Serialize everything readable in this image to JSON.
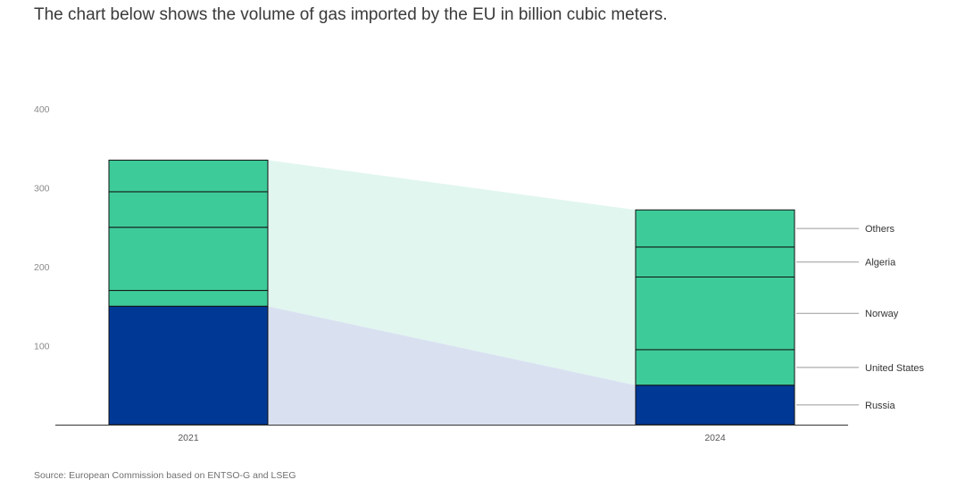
{
  "header": {
    "title": "The chart below shows the volume of gas imported by the EU in billion cubic meters."
  },
  "footer": {
    "source": "Source: European Commission based on ENTSO-G and LSEG"
  },
  "colors": {
    "russia": "#003896",
    "other_sources": "#3ecb9a",
    "segment_border": "#111111",
    "band_russia": "#d9e1f1",
    "band_other": "#e1f6ef",
    "axis": "#333333",
    "leader": "#9a9a9a"
  },
  "chart_data": {
    "type": "bar",
    "stacked": true,
    "categories": [
      "2021",
      "2024"
    ],
    "series": [
      {
        "name": "Russia",
        "values": [
          150,
          50
        ]
      },
      {
        "name": "United States",
        "values": [
          20,
          45
        ]
      },
      {
        "name": "Norway",
        "values": [
          80,
          92
        ]
      },
      {
        "name": "Algeria",
        "values": [
          45,
          38
        ]
      },
      {
        "name": "Others",
        "values": [
          40,
          47
        ]
      }
    ],
    "ylim": [
      0,
      400
    ],
    "yticks": [
      100,
      200,
      300,
      400
    ],
    "grid": false,
    "legend": "right, labels at segment midpoints of the 2024 bar",
    "connecting_bands": [
      {
        "series_from": "Russia",
        "series_to": "Russia"
      },
      {
        "series_from": "United States",
        "series_to": "Others"
      }
    ]
  }
}
